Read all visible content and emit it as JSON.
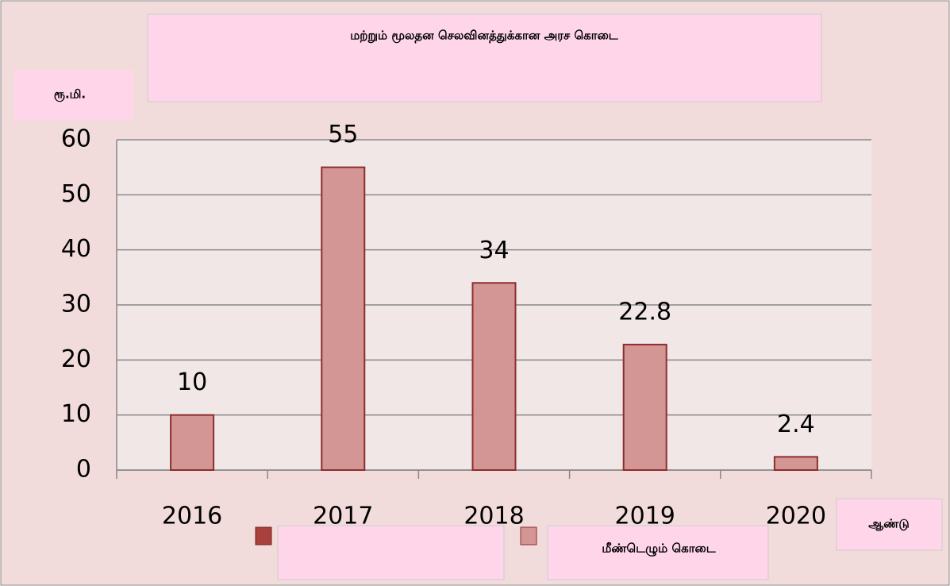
{
  "chart_data": {
    "type": "bar",
    "title": "மற்றும் மூலதன செலவினத்துக்கான அரச கொடை",
    "y_label": "ரூ.மி.",
    "x_label": "ஆண்டு",
    "categories": [
      "2016",
      "2017",
      "2018",
      "2019",
      "2020"
    ],
    "series": [
      {
        "name": "மீண்டெழும் கொடை",
        "color": "#d49694",
        "values": [
          10,
          55,
          34,
          22.8,
          2.4
        ]
      }
    ],
    "ylim": [
      0,
      60
    ],
    "yticks": [
      0,
      10,
      20,
      30,
      40,
      50,
      60
    ],
    "grid": true
  }
}
